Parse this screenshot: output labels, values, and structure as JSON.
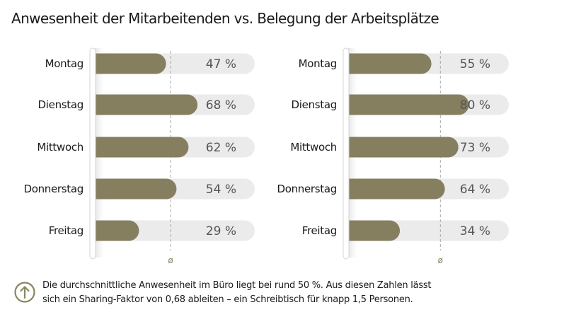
{
  "title": "Anwesenheit der Mitarbeitenden vs. Belegung der Arbeitsplätze",
  "chart_data": [
    {
      "type": "bar",
      "orientation": "horizontal",
      "categories": [
        "Montag",
        "Dienstag",
        "Mittwoch",
        "Donnerstag",
        "Freitag"
      ],
      "values": [
        47,
        68,
        62,
        54,
        29
      ],
      "value_labels": [
        "47 %",
        "68 %",
        "62 %",
        "54 %",
        "29 %"
      ],
      "xlim": [
        0,
        100
      ],
      "average_value": 50,
      "average_label": "ø",
      "bar_color": "#857f60",
      "track_color": "#ebebeb"
    },
    {
      "type": "bar",
      "orientation": "horizontal",
      "categories": [
        "Montag",
        "Dienstag",
        "Mittwoch",
        "Donnerstag",
        "Freitag"
      ],
      "values": [
        55,
        80,
        73,
        64,
        34
      ],
      "value_labels": [
        "55 %",
        "80 %",
        "73 %",
        "64 %",
        "34 %"
      ],
      "xlim": [
        0,
        100
      ],
      "average_value": 61,
      "average_label": "ø",
      "bar_color": "#857f60",
      "track_color": "#ebebeb"
    }
  ],
  "footer": {
    "icon": "arrow-up-circle-icon",
    "icon_color": "#8a8660",
    "line1": "Die durchschnittliche Anwesenheit im Büro liegt bei rund 50 %. Aus diesen Zahlen lässt",
    "line2": "sich ein Sharing-Faktor von 0,68 ableiten – ein Schreibtisch für knapp 1,5 Personen."
  }
}
